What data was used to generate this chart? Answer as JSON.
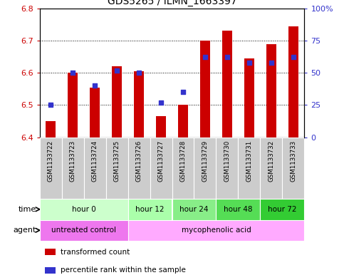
{
  "title": "GDS5265 / ILMN_1663397",
  "samples": [
    "GSM1133722",
    "GSM1133723",
    "GSM1133724",
    "GSM1133725",
    "GSM1133726",
    "GSM1133727",
    "GSM1133728",
    "GSM1133729",
    "GSM1133730",
    "GSM1133731",
    "GSM1133732",
    "GSM1133733"
  ],
  "transformed_count": [
    6.45,
    6.6,
    6.555,
    6.62,
    6.605,
    6.465,
    6.5,
    6.7,
    6.73,
    6.645,
    6.69,
    6.745
  ],
  "percentile_rank": [
    25,
    50,
    40,
    52,
    50,
    27,
    35,
    62,
    62,
    58,
    58,
    62
  ],
  "bar_bottom": 6.4,
  "ylim_left": [
    6.4,
    6.8
  ],
  "ylim_right": [
    0,
    100
  ],
  "yticks_left": [
    6.4,
    6.5,
    6.6,
    6.7,
    6.8
  ],
  "yticks_right": [
    0,
    25,
    50,
    75,
    100
  ],
  "ytick_labels_right": [
    "0",
    "25",
    "50",
    "75",
    "100%"
  ],
  "bar_color": "#cc0000",
  "dot_color": "#3333cc",
  "grid_color": "#000000",
  "time_groups": [
    {
      "label": "hour 0",
      "start": 0,
      "end": 4,
      "color": "#ccffcc"
    },
    {
      "label": "hour 12",
      "start": 4,
      "end": 6,
      "color": "#aaffaa"
    },
    {
      "label": "hour 24",
      "start": 6,
      "end": 8,
      "color": "#88ee88"
    },
    {
      "label": "hour 48",
      "start": 8,
      "end": 10,
      "color": "#55dd55"
    },
    {
      "label": "hour 72",
      "start": 10,
      "end": 12,
      "color": "#33cc33"
    }
  ],
  "agent_groups": [
    {
      "label": "untreated control",
      "start": 0,
      "end": 4,
      "color": "#ee77ee"
    },
    {
      "label": "mycophenolic acid",
      "start": 4,
      "end": 12,
      "color": "#ffaaff"
    }
  ],
  "left_axis_color": "#cc0000",
  "right_axis_color": "#3333cc",
  "sample_bg_color": "#cccccc",
  "legend_bar_label": "transformed count",
  "legend_dot_label": "percentile rank within the sample",
  "time_label": "time",
  "agent_label": "agent",
  "bar_width": 0.45
}
